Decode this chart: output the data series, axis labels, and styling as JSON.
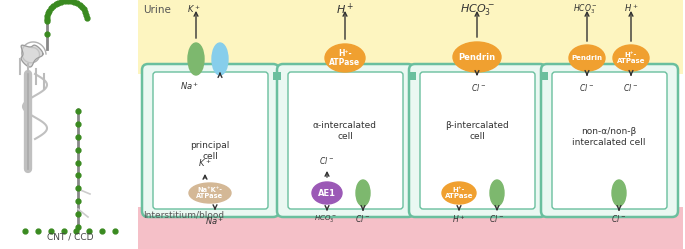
{
  "bg_color": "#ffffff",
  "urine_color": "#fdf5c0",
  "interstitium_color": "#f5c0c8",
  "cell_wall_color": "#6abf9e",
  "cell_fill_color": "#eaf8f2",
  "urine_label": "Urine",
  "interstitium_label": "Interstitium/blood",
  "cnt_ccd_label": "CNT / CCD",
  "cell_labels": [
    "principal\ncell",
    "α-intercalated\ncell",
    "β-intercalated\ncell",
    "non-α/non-β\nintercalated cell"
  ],
  "transporter_orange": "#f0a030",
  "transporter_green": "#7db86e",
  "transporter_blue": "#87ceeb",
  "transporter_purple": "#9b59b6",
  "transporter_tan": "#d4b896"
}
